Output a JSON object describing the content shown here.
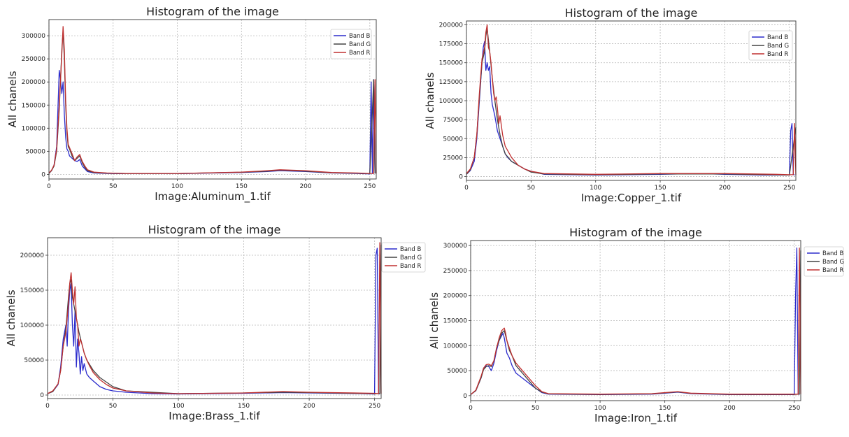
{
  "chart_data": [
    {
      "type": "line",
      "title": "Histogram of the image",
      "xlabel": "Image:Aluminum_1.tif",
      "ylabel": "All chanels",
      "xlim": [
        0,
        255
      ],
      "ylim": [
        -10000,
        335000
      ],
      "xticks": [
        0,
        50,
        100,
        150,
        200,
        250
      ],
      "xtick_labels": [
        "0",
        "50",
        "100",
        "150",
        "200",
        "250"
      ],
      "yticks": [
        0,
        50000,
        100000,
        150000,
        200000,
        250000,
        300000
      ],
      "ytick_labels": [
        "0",
        "50000",
        "100000",
        "150000",
        "200000",
        "250000",
        "300000"
      ],
      "grid": true,
      "legend": "top-right",
      "series": [
        {
          "name": "Band B",
          "color": "#2b2bcc",
          "x": [
            0,
            2,
            4,
            6,
            7,
            8,
            9,
            10,
            11,
            12,
            13,
            14,
            15,
            16,
            18,
            20,
            22,
            24,
            26,
            28,
            30,
            35,
            45,
            60,
            100,
            150,
            170,
            180,
            200,
            220,
            240,
            250,
            251,
            252,
            253,
            254
          ],
          "y": [
            2000,
            8000,
            20000,
            60000,
            140000,
            225000,
            205000,
            175000,
            200000,
            130000,
            80000,
            55000,
            50000,
            40000,
            35000,
            30000,
            28000,
            32000,
            18000,
            12000,
            6000,
            3000,
            2000,
            1500,
            1500,
            4000,
            6000,
            8000,
            6000,
            3000,
            2000,
            1000,
            200000,
            2000,
            205000,
            2000
          ]
        },
        {
          "name": "Band G",
          "color": "#444444",
          "x": [
            0,
            2,
            4,
            6,
            8,
            10,
            11,
            12,
            13,
            14,
            15,
            16,
            18,
            20,
            22,
            24,
            26,
            28,
            30,
            35,
            45,
            60,
            100,
            150,
            170,
            180,
            200,
            220,
            240,
            250,
            253,
            254
          ],
          "y": [
            2000,
            8000,
            18000,
            50000,
            140000,
            270000,
            310000,
            250000,
            150000,
            90000,
            60000,
            55000,
            40000,
            30000,
            35000,
            40000,
            25000,
            15000,
            8000,
            4000,
            2500,
            1800,
            1800,
            4500,
            7000,
            9000,
            7000,
            3500,
            2500,
            1500,
            205000,
            2000
          ]
        },
        {
          "name": "Band R",
          "color": "#c03030",
          "x": [
            0,
            2,
            4,
            6,
            8,
            10,
            11,
            12,
            13,
            14,
            15,
            16,
            18,
            20,
            22,
            24,
            25,
            26,
            28,
            30,
            35,
            45,
            60,
            100,
            150,
            170,
            180,
            200,
            220,
            240,
            250,
            253,
            254,
            255
          ],
          "y": [
            3000,
            9000,
            20000,
            55000,
            150000,
            260000,
            320000,
            270000,
            160000,
            100000,
            65000,
            58000,
            45000,
            30000,
            38000,
            43000,
            35000,
            28000,
            18000,
            10000,
            5000,
            3000,
            2000,
            2000,
            5000,
            8000,
            10000,
            8000,
            4000,
            3000,
            2000,
            2000,
            205000,
            2000
          ]
        }
      ]
    },
    {
      "type": "line",
      "title": "Histogram of the image",
      "xlabel": "Image:Copper_1.tif",
      "ylabel": "All chanels",
      "xlim": [
        0,
        255
      ],
      "ylim": [
        -5000,
        205000
      ],
      "xticks": [
        0,
        50,
        100,
        150,
        200,
        250
      ],
      "xtick_labels": [
        "0",
        "50",
        "100",
        "150",
        "200",
        "250"
      ],
      "yticks": [
        0,
        25000,
        50000,
        75000,
        100000,
        125000,
        150000,
        175000,
        200000
      ],
      "ytick_labels": [
        "0",
        "25000",
        "50000",
        "75000",
        "100000",
        "125000",
        "150000",
        "175000",
        "200000"
      ],
      "grid": true,
      "legend": "top-right",
      "series": [
        {
          "name": "Band B",
          "color": "#2b2bcc",
          "x": [
            0,
            3,
            6,
            8,
            10,
            12,
            13,
            14,
            15,
            16,
            17,
            18,
            19,
            20,
            22,
            24,
            26,
            28,
            30,
            32,
            35,
            40,
            45,
            50,
            60,
            100,
            150,
            180,
            200,
            230,
            250,
            251,
            252,
            253,
            254
          ],
          "y": [
            3000,
            8000,
            20000,
            50000,
            100000,
            150000,
            170000,
            178000,
            140000,
            150000,
            140000,
            145000,
            110000,
            95000,
            80000,
            60000,
            50000,
            40000,
            30000,
            25000,
            20000,
            15000,
            10000,
            7000,
            3000,
            2000,
            3000,
            4000,
            3000,
            2000,
            2000,
            60000,
            70000,
            3000,
            2000
          ]
        },
        {
          "name": "Band G",
          "color": "#444444",
          "x": [
            0,
            3,
            6,
            8,
            10,
            12,
            14,
            15,
            16,
            17,
            18,
            20,
            22,
            24,
            26,
            28,
            30,
            35,
            40,
            45,
            50,
            60,
            100,
            150,
            200,
            250,
            255
          ],
          "y": [
            3000,
            9000,
            25000,
            55000,
            105000,
            150000,
            165000,
            185000,
            195000,
            180000,
            165000,
            130000,
            100000,
            75000,
            55000,
            40000,
            30000,
            20000,
            15000,
            10000,
            6000,
            3500,
            2500,
            3500,
            3500,
            2000,
            65000
          ]
        },
        {
          "name": "Band R",
          "color": "#c03030",
          "x": [
            0,
            3,
            6,
            8,
            10,
            12,
            14,
            15,
            16,
            17,
            18,
            19,
            20,
            21,
            22,
            23,
            24,
            25,
            26,
            28,
            30,
            35,
            40,
            45,
            50,
            60,
            100,
            150,
            200,
            240,
            250,
            253,
            254,
            255
          ],
          "y": [
            4000,
            10000,
            25000,
            55000,
            110000,
            155000,
            170000,
            190000,
            200000,
            170000,
            165000,
            150000,
            130000,
            110000,
            100000,
            105000,
            90000,
            70000,
            80000,
            55000,
            40000,
            25000,
            15000,
            10000,
            7000,
            4000,
            3000,
            4000,
            4000,
            3000,
            2500,
            2500,
            70000,
            2000
          ]
        }
      ]
    },
    {
      "type": "line",
      "title": "Histogram of the image",
      "xlabel": "Image:Brass_1.tif",
      "ylabel": "All chanels",
      "xlim": [
        0,
        255
      ],
      "ylim": [
        -5000,
        225000
      ],
      "xticks": [
        0,
        50,
        100,
        150,
        200,
        250
      ],
      "xtick_labels": [
        "0",
        "50",
        "100",
        "150",
        "200",
        "250"
      ],
      "yticks": [
        0,
        50000,
        100000,
        150000,
        200000
      ],
      "ytick_labels": [
        "0",
        "50000",
        "100000",
        "150000",
        "200000"
      ],
      "grid": true,
      "legend": "top-right",
      "series": [
        {
          "name": "Band B",
          "color": "#2b2bcc",
          "x": [
            0,
            4,
            8,
            10,
            12,
            14,
            15,
            16,
            17,
            18,
            19,
            20,
            21,
            22,
            23,
            24,
            25,
            26,
            27,
            28,
            30,
            32,
            35,
            40,
            45,
            50,
            60,
            80,
            100,
            150,
            180,
            200,
            240,
            250,
            251,
            252,
            253,
            254
          ],
          "y": [
            2000,
            5000,
            15000,
            40000,
            80000,
            100000,
            70000,
            120000,
            150000,
            160000,
            100000,
            70000,
            120000,
            40000,
            80000,
            60000,
            30000,
            55000,
            35000,
            45000,
            30000,
            25000,
            20000,
            12000,
            8000,
            6000,
            4000,
            2000,
            1500,
            2500,
            3500,
            3000,
            2000,
            1500,
            200000,
            210000,
            2000,
            1500
          ]
        },
        {
          "name": "Band G",
          "color": "#444444",
          "x": [
            0,
            4,
            8,
            10,
            12,
            14,
            16,
            17,
            18,
            19,
            20,
            22,
            24,
            26,
            28,
            30,
            35,
            40,
            50,
            60,
            100,
            150,
            180,
            200,
            250,
            254,
            255
          ],
          "y": [
            2000,
            5000,
            16000,
            35000,
            70000,
            95000,
            140000,
            160000,
            165000,
            140000,
            130000,
            110000,
            90000,
            75000,
            60000,
            50000,
            35000,
            25000,
            12000,
            6000,
            2000,
            3000,
            4000,
            3500,
            2000,
            2000,
            215000
          ]
        },
        {
          "name": "Band R",
          "color": "#c03030",
          "x": [
            0,
            4,
            8,
            10,
            12,
            14,
            16,
            17,
            18,
            19,
            20,
            21,
            22,
            23,
            24,
            25,
            26,
            28,
            30,
            32,
            35,
            40,
            45,
            50,
            60,
            80,
            100,
            150,
            180,
            200,
            250,
            253,
            254,
            255
          ],
          "y": [
            2000,
            6000,
            16000,
            35000,
            70000,
            90000,
            130000,
            160000,
            175000,
            150000,
            130000,
            155000,
            110000,
            100000,
            70000,
            80000,
            75000,
            60000,
            50000,
            42000,
            32000,
            22000,
            15000,
            10000,
            6000,
            3000,
            2000,
            3000,
            5000,
            4000,
            2500,
            2000,
            218000,
            2000
          ]
        }
      ]
    },
    {
      "type": "line",
      "title": "Histogram of the image",
      "xlabel": "Image:Iron_1.tif",
      "ylabel": "All chanels",
      "xlim": [
        0,
        255
      ],
      "ylim": [
        -10000,
        310000
      ],
      "xticks": [
        0,
        50,
        100,
        150,
        200,
        250
      ],
      "xtick_labels": [
        "0",
        "50",
        "100",
        "150",
        "200",
        "250"
      ],
      "yticks": [
        0,
        50000,
        100000,
        150000,
        200000,
        250000,
        300000
      ],
      "ytick_labels": [
        "0",
        "50000",
        "100000",
        "150000",
        "200000",
        "250000",
        "300000"
      ],
      "grid": true,
      "legend": "top-right",
      "series": [
        {
          "name": "Band B",
          "color": "#2b2bcc",
          "x": [
            0,
            4,
            8,
            10,
            12,
            14,
            16,
            18,
            20,
            22,
            24,
            25,
            26,
            28,
            30,
            32,
            35,
            40,
            45,
            50,
            55,
            60,
            100,
            140,
            150,
            160,
            170,
            200,
            240,
            250,
            251,
            252,
            253,
            254
          ],
          "y": [
            2000,
            10000,
            35000,
            55000,
            60000,
            58000,
            50000,
            65000,
            90000,
            110000,
            120000,
            125000,
            115000,
            85000,
            75000,
            60000,
            45000,
            35000,
            25000,
            15000,
            6000,
            3000,
            2000,
            3000,
            5000,
            7000,
            4000,
            2000,
            2000,
            2000,
            200000,
            295000,
            3000,
            2000
          ]
        },
        {
          "name": "Band G",
          "color": "#444444",
          "x": [
            0,
            4,
            8,
            10,
            12,
            14,
            16,
            18,
            20,
            22,
            24,
            26,
            28,
            30,
            32,
            35,
            40,
            45,
            50,
            55,
            60,
            100,
            140,
            150,
            160,
            170,
            200,
            250,
            254,
            255
          ],
          "y": [
            2000,
            10000,
            35000,
            52000,
            58000,
            60000,
            58000,
            70000,
            95000,
            110000,
            125000,
            130000,
            110000,
            90000,
            80000,
            60000,
            45000,
            30000,
            15000,
            7000,
            3500,
            2500,
            3500,
            5500,
            7500,
            4500,
            2500,
            2500,
            3000,
            290000
          ]
        },
        {
          "name": "Band R",
          "color": "#c03030",
          "x": [
            0,
            4,
            8,
            10,
            12,
            14,
            16,
            18,
            20,
            22,
            24,
            26,
            27,
            28,
            30,
            32,
            35,
            40,
            45,
            50,
            55,
            60,
            100,
            140,
            150,
            160,
            170,
            200,
            250,
            253,
            254,
            255
          ],
          "y": [
            2000,
            11000,
            38000,
            55000,
            62000,
            63000,
            60000,
            70000,
            95000,
            115000,
            130000,
            135000,
            125000,
            110000,
            95000,
            80000,
            65000,
            50000,
            35000,
            20000,
            8000,
            4000,
            3000,
            4000,
            6000,
            8000,
            5000,
            3000,
            3000,
            3000,
            295000,
            3000
          ]
        }
      ]
    }
  ]
}
